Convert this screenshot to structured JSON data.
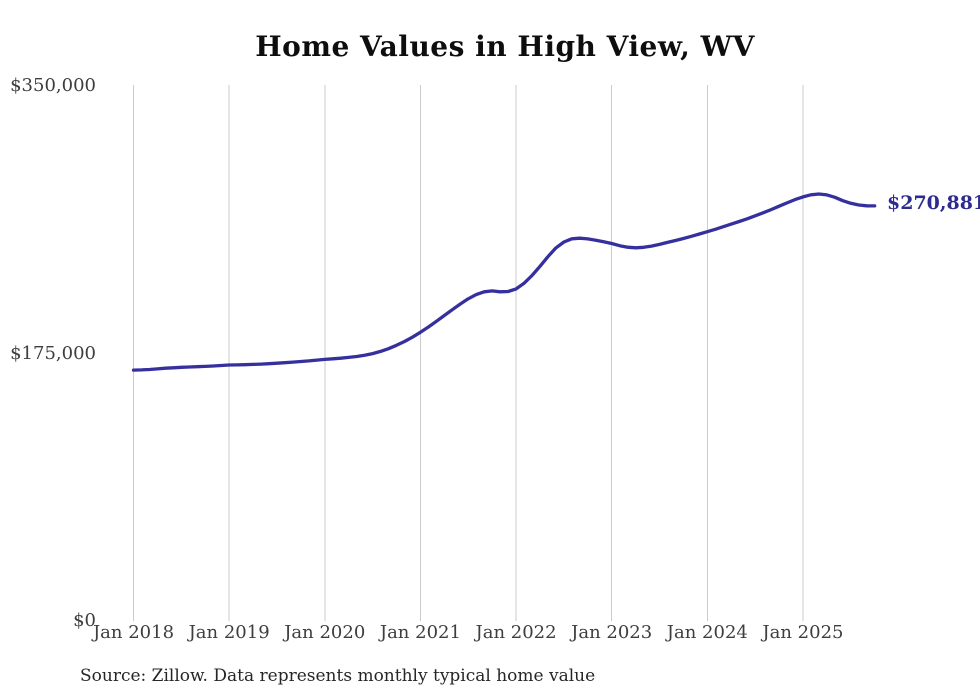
{
  "page": {
    "background": "#ffffff"
  },
  "colors": {
    "line": "#35309e",
    "latest_label_text": "#2e2b90",
    "gridline": "#cbcbcb",
    "axis_text": "#3e3e3e",
    "title_text": "#0e0e0e"
  },
  "chart_data": {
    "type": "line",
    "title": "Home Values in High View, WV",
    "source": "Source: Zillow. Data represents monthly typical home value",
    "grid": "vertical-only",
    "legend": "none",
    "x_axis": {
      "tick_labels": [
        "Jan 2018",
        "Jan 2019",
        "Jan 2020",
        "Jan 2021",
        "Jan 2022",
        "Jan 2023",
        "Jan 2024",
        "Jan 2025"
      ]
    },
    "y_axis": {
      "ylim": [
        0,
        350000
      ],
      "ticks": [
        {
          "value": 0,
          "label": "$0"
        },
        {
          "value": 175000,
          "label": "$175,000"
        },
        {
          "value": 350000,
          "label": "$350,000"
        }
      ]
    },
    "latest": {
      "label": "$270,881",
      "value": 270881
    },
    "series": [
      {
        "name": "Typical home value (monthly)",
        "color": "#35309e",
        "start_month": "Jan 2018",
        "cadence": "monthly",
        "values": [
          163500,
          163600,
          163900,
          164300,
          164700,
          165000,
          165300,
          165500,
          165700,
          165900,
          166200,
          166500,
          166800,
          166900,
          167000,
          167200,
          167400,
          167700,
          168000,
          168300,
          168700,
          169100,
          169500,
          170000,
          170500,
          170900,
          171300,
          171800,
          172400,
          173200,
          174300,
          175700,
          177500,
          179700,
          182200,
          185000,
          188200,
          191700,
          195400,
          199200,
          203000,
          206700,
          210100,
          212900,
          214700,
          215300,
          214700,
          214900,
          216600,
          220300,
          225400,
          231400,
          237700,
          243400,
          247300,
          249400,
          249800,
          249300,
          248400,
          247400,
          246300,
          244900,
          243900,
          243500,
          243800,
          244600,
          245700,
          247000,
          248300,
          249600,
          251000,
          252500,
          254000,
          255600,
          257300,
          259000,
          260700,
          262500,
          264400,
          266400,
          268500,
          270700,
          272900,
          275000,
          276800,
          278200,
          278700,
          278100,
          276500,
          274300,
          272600,
          271500,
          271000,
          270881
        ]
      }
    ]
  }
}
